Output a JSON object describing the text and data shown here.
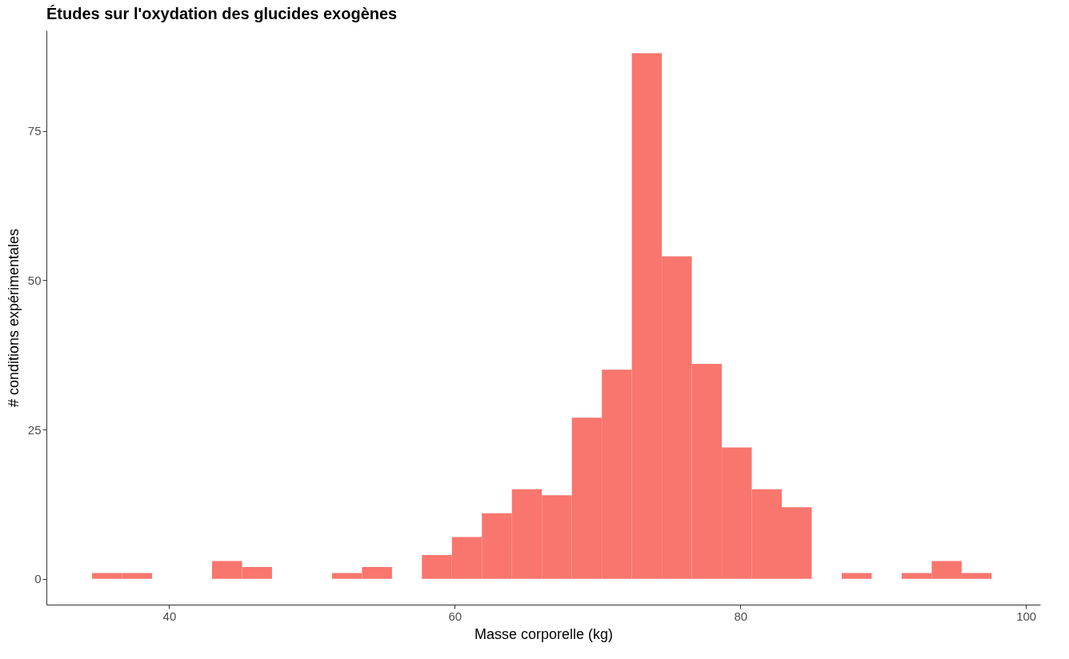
{
  "chart_data": {
    "type": "histogram",
    "title": "Études sur l'oxydation des glucides exogènes",
    "xlabel": "Masse corporelle (kg)",
    "ylabel": "# conditions expérimentales",
    "bins": [
      34.6,
      36.7,
      38.8,
      40.9,
      43.0,
      45.1,
      47.2,
      49.3,
      51.4,
      53.5,
      55.6,
      57.7,
      59.8,
      61.9,
      64.0,
      66.1,
      68.2,
      70.3,
      72.4,
      74.5,
      76.6,
      78.7,
      80.8,
      82.9,
      85.0,
      87.1,
      89.2,
      91.3,
      93.4,
      95.5,
      97.6
    ],
    "values": [
      1,
      1,
      0,
      0,
      3,
      2,
      0,
      0,
      1,
      2,
      0,
      4,
      7,
      11,
      15,
      14,
      27,
      35,
      88,
      54,
      36,
      22,
      15,
      12,
      0,
      1,
      0,
      1,
      3,
      1
    ],
    "color": "#f8766d",
    "xlim": [
      31.4,
      101.0
    ],
    "ylim": [
      -4.3,
      91.8
    ],
    "xticks": [
      40,
      60,
      80,
      100
    ],
    "yticks": [
      0,
      25,
      50,
      75
    ],
    "grid": false
  }
}
